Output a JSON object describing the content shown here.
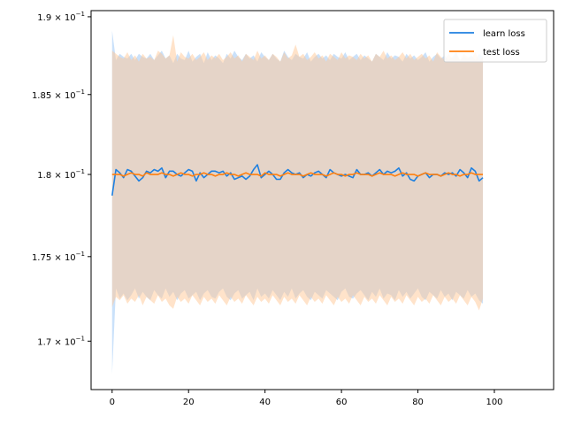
{
  "chart_data": {
    "type": "line",
    "title": "",
    "xlabel": "",
    "ylabel": "",
    "y_scale": "log",
    "xlim": [
      -5.5,
      115.5
    ],
    "ylim": [
      0.1672,
      0.1904
    ],
    "grid": false,
    "legend_position": "top-right",
    "x_ticks": [
      0,
      20,
      40,
      60,
      80,
      100
    ],
    "x_tick_labels": [
      "0",
      "20",
      "40",
      "60",
      "80",
      "100"
    ],
    "y_ticks": [
      0.17,
      0.175,
      0.18,
      0.185,
      0.19
    ],
    "y_tick_labels": [
      {
        "mantissa": "1.7",
        "exp": "-1"
      },
      {
        "mantissa": "1.75",
        "exp": "-1"
      },
      {
        "mantissa": "1.8",
        "exp": "-1"
      },
      {
        "mantissa": "1.85",
        "exp": "-1"
      },
      {
        "mantissa": "1.9",
        "exp": "-1"
      }
    ],
    "series": [
      {
        "name": "learn loss",
        "color": "#1f77b4",
        "line_color": "#1f80e0",
        "band_color": "#9ec9f5",
        "x_start": 0,
        "x_step": 1,
        "values": [
          0.1787,
          0.1803,
          0.1801,
          0.1798,
          0.1803,
          0.1802,
          0.1799,
          0.1796,
          0.1798,
          0.1802,
          0.1801,
          0.1803,
          0.1802,
          0.1804,
          0.1798,
          0.1802,
          0.1802,
          0.18,
          0.1799,
          0.1801,
          0.1803,
          0.1802,
          0.1796,
          0.1801,
          0.1798,
          0.18,
          0.1802,
          0.1802,
          0.1801,
          0.1802,
          0.1799,
          0.1801,
          0.1797,
          0.1798,
          0.1799,
          0.1797,
          0.1799,
          0.1803,
          0.1806,
          0.1798,
          0.18,
          0.1802,
          0.18,
          0.1797,
          0.1797,
          0.1801,
          0.1803,
          0.1801,
          0.18,
          0.1801,
          0.1798,
          0.18,
          0.1799,
          0.1801,
          0.1802,
          0.18,
          0.1798,
          0.1803,
          0.1801,
          0.18,
          0.1799,
          0.18,
          0.1799,
          0.1798,
          0.1803,
          0.18,
          0.18,
          0.1801,
          0.1799,
          0.1801,
          0.1803,
          0.18,
          0.1802,
          0.1801,
          0.1802,
          0.1804,
          0.1799,
          0.1801,
          0.1797,
          0.1796,
          0.1799,
          0.18,
          0.1801,
          0.1798,
          0.18,
          0.18,
          0.1799,
          0.1801,
          0.18,
          0.1801,
          0.1799,
          0.1803,
          0.1801,
          0.1798,
          0.1804,
          0.1802,
          0.1796,
          0.1798
        ],
        "upper": [
          0.1891,
          0.1872,
          0.1876,
          0.1874,
          0.1873,
          0.1876,
          0.1872,
          0.1876,
          0.1874,
          0.1873,
          0.1876,
          0.1872,
          0.1875,
          0.1878,
          0.1873,
          0.1875,
          0.187,
          0.1876,
          0.1873,
          0.1872,
          0.1878,
          0.1871,
          0.1874,
          0.1876,
          0.187,
          0.1877,
          0.1872,
          0.1875,
          0.1873,
          0.187,
          0.1876,
          0.1873,
          0.1878,
          0.1874,
          0.1872,
          0.1876,
          0.1873,
          0.1875,
          0.1871,
          0.1877,
          0.1874,
          0.1872,
          0.1876,
          0.1873,
          0.1871,
          0.1878,
          0.1874,
          0.1872,
          0.1876,
          0.1874,
          0.1873,
          0.1877,
          0.1871,
          0.1874,
          0.1876,
          0.1873,
          0.1875,
          0.1872,
          0.1876,
          0.1874,
          0.1873,
          0.1877,
          0.1872,
          0.1874,
          0.1876,
          0.1872,
          0.1875,
          0.1873,
          0.1871,
          0.1876,
          0.1874,
          0.1872,
          0.1877,
          0.1873,
          0.1875,
          0.1874,
          0.1871,
          0.1876,
          0.1873,
          0.1875,
          0.1872,
          0.1874,
          0.1877,
          0.1871,
          0.1874,
          0.1876,
          0.1873,
          0.1875,
          0.1872,
          0.1874,
          0.1877,
          0.1872,
          0.1874,
          0.1873,
          0.1875,
          0.1872,
          0.1876,
          0.1874
        ],
        "lower": [
          0.1681,
          0.1731,
          0.1725,
          0.1728,
          0.1724,
          0.1727,
          0.1731,
          0.1725,
          0.1729,
          0.1726,
          0.1724,
          0.173,
          0.1727,
          0.1725,
          0.1731,
          0.1726,
          0.1729,
          0.1724,
          0.1728,
          0.173,
          0.1725,
          0.1727,
          0.1729,
          0.1724,
          0.1728,
          0.173,
          0.1726,
          0.1725,
          0.1729,
          0.1731,
          0.1726,
          0.1724,
          0.1728,
          0.173,
          0.1725,
          0.1727,
          0.1729,
          0.1724,
          0.1731,
          0.1726,
          0.1728,
          0.1725,
          0.173,
          0.1727,
          0.1724,
          0.1729,
          0.1726,
          0.1731,
          0.1725,
          0.1728,
          0.173,
          0.1726,
          0.1724,
          0.1729,
          0.1727,
          0.1725,
          0.173,
          0.1728,
          0.1726,
          0.1724,
          0.1729,
          0.1731,
          0.1726,
          0.1725,
          0.1728,
          0.173,
          0.1727,
          0.1724,
          0.1729,
          0.1726,
          0.1731,
          0.1725,
          0.1728,
          0.1727,
          0.1724,
          0.173,
          0.1726,
          0.1729,
          0.1725,
          0.1728,
          0.1731,
          0.1726,
          0.1724,
          0.1729,
          0.1727,
          0.1725,
          0.173,
          0.1726,
          0.1728,
          0.1724,
          0.1729,
          0.1727,
          0.1725,
          0.173,
          0.1726,
          0.1728,
          0.1724,
          0.1722
        ]
      },
      {
        "name": "test loss",
        "color": "#ff7f0e",
        "line_color": "#ff7f0e",
        "band_color": "#ffc896",
        "x_start": 0,
        "x_step": 1,
        "values": [
          0.18,
          0.18,
          0.18,
          0.1799,
          0.18,
          0.1801,
          0.18,
          0.18,
          0.1799,
          0.1801,
          0.18,
          0.18,
          0.18,
          0.1801,
          0.18,
          0.18,
          0.1799,
          0.18,
          0.1801,
          0.18,
          0.18,
          0.1799,
          0.18,
          0.18,
          0.1801,
          0.18,
          0.18,
          0.1799,
          0.18,
          0.18,
          0.1801,
          0.18,
          0.18,
          0.1799,
          0.18,
          0.1801,
          0.18,
          0.18,
          0.18,
          0.1799,
          0.1801,
          0.18,
          0.18,
          0.18,
          0.1799,
          0.18,
          0.1801,
          0.18,
          0.18,
          0.18,
          0.1799,
          0.18,
          0.1801,
          0.18,
          0.18,
          0.18,
          0.1799,
          0.18,
          0.1801,
          0.18,
          0.18,
          0.1799,
          0.18,
          0.18,
          0.1801,
          0.18,
          0.18,
          0.18,
          0.1799,
          0.18,
          0.1801,
          0.18,
          0.18,
          0.18,
          0.1799,
          0.18,
          0.1801,
          0.18,
          0.18,
          0.18,
          0.1799,
          0.18,
          0.1801,
          0.18,
          0.18,
          0.18,
          0.1799,
          0.18,
          0.1801,
          0.18,
          0.18,
          0.1799,
          0.18,
          0.18,
          0.1801,
          0.18,
          0.18,
          0.18
        ],
        "upper": [
          0.1878,
          0.1876,
          0.1874,
          0.1873,
          0.1877,
          0.1872,
          0.1875,
          0.1871,
          0.1876,
          0.1873,
          0.1874,
          0.1872,
          0.1878,
          0.1876,
          0.1873,
          0.1875,
          0.1888,
          0.1871,
          0.1877,
          0.1874,
          0.1873,
          0.1876,
          0.1872,
          0.1874,
          0.1877,
          0.1872,
          0.1875,
          0.1873,
          0.1876,
          0.1872,
          0.1874,
          0.1877,
          0.1873,
          0.1875,
          0.1871,
          0.1876,
          0.1874,
          0.1872,
          0.1878,
          0.1873,
          0.1875,
          0.1872,
          0.1876,
          0.1874,
          0.1871,
          0.1877,
          0.1873,
          0.1875,
          0.1882,
          0.1874,
          0.1876,
          0.1872,
          0.1874,
          0.1877,
          0.1873,
          0.1875,
          0.1871,
          0.1876,
          0.1874,
          0.1872,
          0.1877,
          0.1873,
          0.1875,
          0.1874,
          0.1872,
          0.1876,
          0.1873,
          0.1875,
          0.1871,
          0.1876,
          0.1874,
          0.1878,
          0.1873,
          0.1875,
          0.1872,
          0.1874,
          0.1877,
          0.1873,
          0.1876,
          0.1872,
          0.1874,
          0.1876,
          0.1873,
          0.1875,
          0.1871,
          0.1877,
          0.1874,
          0.1872,
          0.1876,
          0.1873,
          0.1875,
          0.1872,
          0.1876,
          0.1874,
          0.1873,
          0.1877,
          0.1872,
          0.1874
        ],
        "lower": [
          0.172,
          0.1726,
          0.1724,
          0.1727,
          0.1722,
          0.1725,
          0.1723,
          0.1727,
          0.1721,
          0.1726,
          0.1724,
          0.1722,
          0.1727,
          0.1723,
          0.1725,
          0.1721,
          0.1719,
          0.1726,
          0.1723,
          0.1725,
          0.1722,
          0.1727,
          0.1724,
          0.1721,
          0.1726,
          0.1723,
          0.1725,
          0.1722,
          0.1727,
          0.1724,
          0.1721,
          0.1726,
          0.1723,
          0.1725,
          0.1722,
          0.1727,
          0.1724,
          0.1721,
          0.1726,
          0.1723,
          0.1725,
          0.1722,
          0.1727,
          0.1724,
          0.1721,
          0.1726,
          0.1723,
          0.1725,
          0.1722,
          0.1727,
          0.1724,
          0.1721,
          0.1726,
          0.1723,
          0.1725,
          0.1722,
          0.1727,
          0.1724,
          0.1721,
          0.1726,
          0.1723,
          0.1725,
          0.1722,
          0.1727,
          0.1724,
          0.1721,
          0.1726,
          0.1723,
          0.1725,
          0.1722,
          0.1727,
          0.1724,
          0.1721,
          0.1726,
          0.1723,
          0.1725,
          0.1722,
          0.1727,
          0.1724,
          0.1721,
          0.1726,
          0.1723,
          0.1725,
          0.1722,
          0.1727,
          0.1724,
          0.1721,
          0.1726,
          0.1723,
          0.1725,
          0.1722,
          0.1727,
          0.1724,
          0.1721,
          0.1726,
          0.1723,
          0.1718,
          0.1725
        ]
      }
    ]
  }
}
